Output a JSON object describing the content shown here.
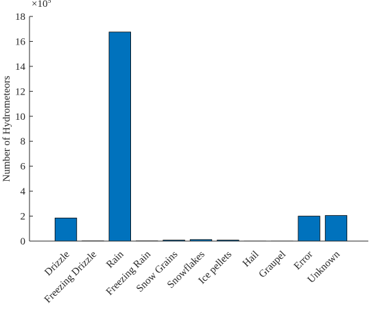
{
  "chart_data": {
    "type": "bar",
    "y_label": "Number of Hydrometeors",
    "y_multiplier_base": "×10",
    "y_multiplier_exponent": "5",
    "categories": [
      "Drizzle",
      "Freezing Drizzle",
      "Rain",
      "Freezing Rain",
      "Snow Grains",
      "Snowflakes",
      "Ice pellets",
      "Hail",
      "Graupel",
      "Error",
      "Unknown"
    ],
    "values": [
      1.85,
      0.02,
      16.75,
      0.02,
      0.08,
      0.12,
      0.08,
      0.01,
      0.01,
      2.0,
      2.05
    ],
    "color": "#0072bd",
    "ylim": [
      0,
      18
    ],
    "yticks": [
      0,
      2,
      4,
      6,
      8,
      10,
      12,
      14,
      16,
      18
    ]
  }
}
